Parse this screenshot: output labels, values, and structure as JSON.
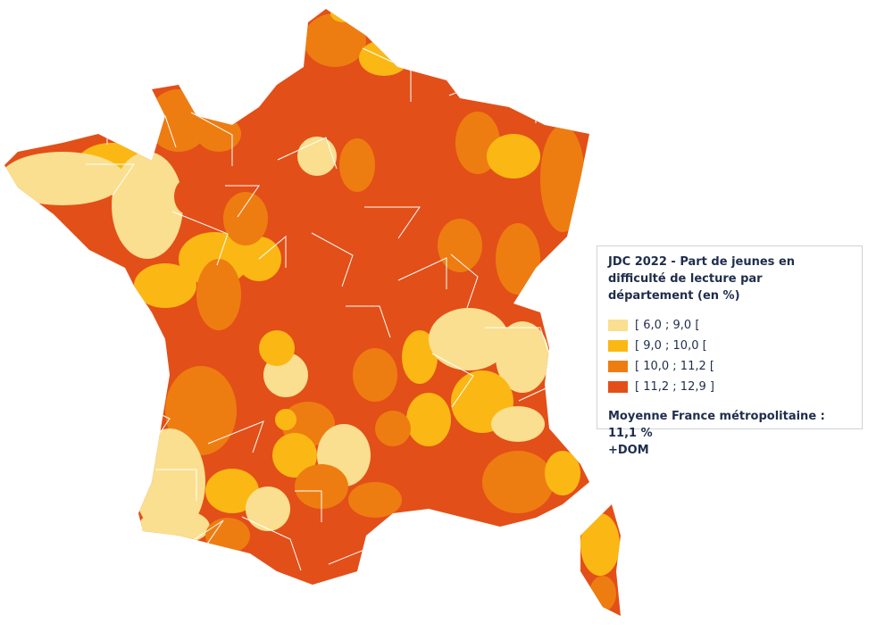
{
  "legend": {
    "title": "JDC 2022 - Part de jeunes en difficulté de lecture par département (en %)",
    "items": [
      {
        "label": "[ 6,0 ; 9,0 [",
        "color": "#f9df8f"
      },
      {
        "label": "[ 9,0 ; 10,0 [",
        "color": "#fbb814"
      },
      {
        "label": "[ 10,0 ; 11,2 [",
        "color": "#ee7d11"
      },
      {
        "label": "[ 11,2 ; 12,9 ]",
        "color": "#e34f18"
      }
    ],
    "note": "Moyenne France métropolitaine : 11,1 %",
    "note2": "+DOM"
  }
}
